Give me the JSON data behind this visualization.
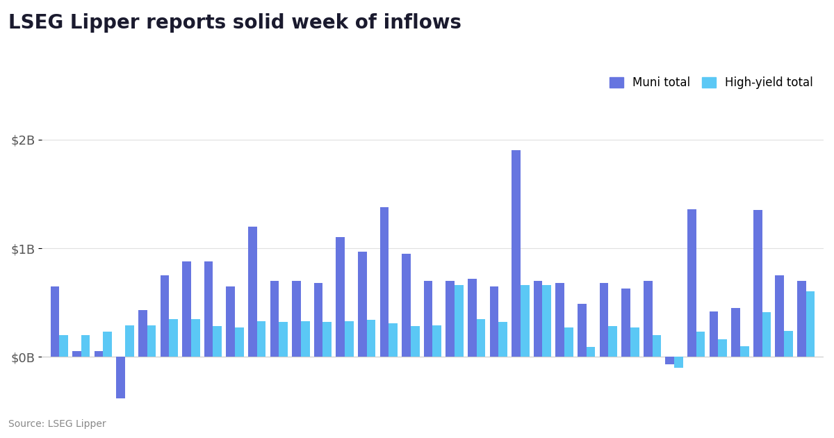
{
  "title": "LSEG Lipper reports solid week of inflows",
  "source": "Source: LSEG Lipper",
  "legend_labels": [
    "Muni total",
    "High-yield total"
  ],
  "muni_color": "#6675e0",
  "hy_color": "#5bc8f5",
  "background_color": "#ffffff",
  "ytick_labels": [
    "$0B",
    "$1B",
    "$2B"
  ],
  "ytick_values": [
    0,
    1000,
    2000
  ],
  "ylim_min": -450,
  "ylim_max": 2200,
  "muni_values": [
    650,
    50,
    50,
    -380,
    430,
    750,
    880,
    880,
    650,
    1200,
    700,
    700,
    680,
    1100,
    970,
    1380,
    950,
    700,
    700,
    720,
    650,
    1900,
    700,
    680,
    490,
    680,
    630,
    700,
    -70,
    1360,
    420,
    450,
    1350,
    750,
    700
  ],
  "hy_values": [
    200,
    200,
    230,
    290,
    290,
    350,
    350,
    280,
    270,
    330,
    320,
    330,
    320,
    330,
    340,
    310,
    280,
    290,
    660,
    350,
    320,
    660,
    660,
    270,
    90,
    280,
    270,
    200,
    -100,
    230,
    160,
    100,
    410,
    240,
    600
  ]
}
